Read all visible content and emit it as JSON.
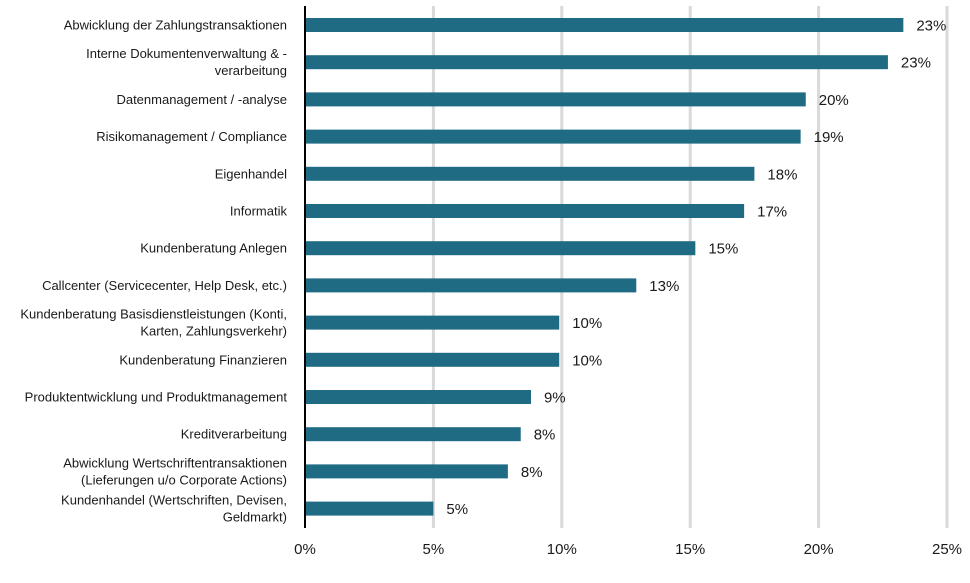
{
  "chart_data": {
    "type": "bar",
    "orientation": "horizontal",
    "categories": [
      [
        "Abwicklung der Zahlungstransaktionen"
      ],
      [
        "Interne Dokumentenverwaltung & -",
        "verarbeitung"
      ],
      [
        "Datenmanagement / -analyse"
      ],
      [
        "Risikomanagement / Compliance"
      ],
      [
        "Eigenhandel"
      ],
      [
        "Informatik"
      ],
      [
        "Kundenberatung Anlegen"
      ],
      [
        "Callcenter (Servicecenter, Help Desk, etc.)"
      ],
      [
        "Kundenberatung Basisdienstleistungen (Konti,",
        "Karten, Zahlungsverkehr)"
      ],
      [
        "Kundenberatung Finanzieren"
      ],
      [
        "Produktentwicklung und Produktmanagement"
      ],
      [
        "Kreditverarbeitung"
      ],
      [
        "Abwicklung Wertschriftentransaktionen",
        "(Lieferungen u/o Corporate Actions)"
      ],
      [
        "Kundenhandel (Wertschriften, Devisen,",
        "Geldmarkt)"
      ]
    ],
    "values": [
      23.3,
      22.7,
      19.5,
      19.3,
      17.5,
      17.1,
      15.2,
      12.9,
      9.9,
      9.9,
      8.8,
      8.4,
      7.9,
      5.0
    ],
    "data_labels": [
      "23%",
      "23%",
      "20%",
      "19%",
      "18%",
      "17%",
      "15%",
      "13%",
      "10%",
      "10%",
      "9%",
      "8%",
      "8%",
      "5%"
    ],
    "x_ticks": [
      0,
      5,
      10,
      15,
      20,
      25
    ],
    "x_tick_labels": [
      "0%",
      "5%",
      "10%",
      "15%",
      "20%",
      "25%"
    ],
    "xlim": [
      0,
      25
    ],
    "grid": "vertical",
    "bar_color": "#1f6b84",
    "grid_color": "#d9d9d9",
    "axis_color": "#000000",
    "title": "",
    "xlabel": "",
    "ylabel": ""
  }
}
